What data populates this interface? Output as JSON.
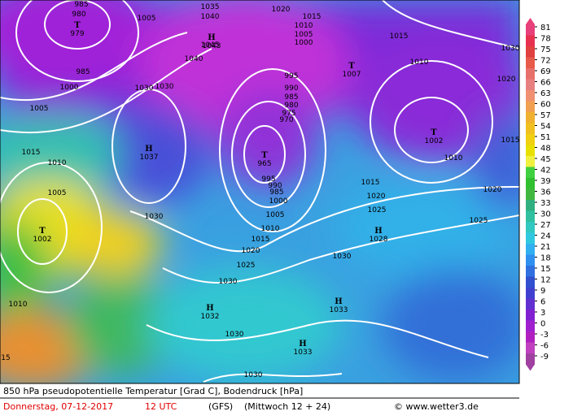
{
  "map": {
    "isobar_labels": [
      "985",
      "980",
      "1005",
      "1035",
      "1040",
      "1045",
      "1020",
      "1015",
      "1010",
      "1005",
      "1000",
      "1015",
      "1030",
      "1010",
      "1020",
      "985",
      "1000",
      "1030",
      "1030",
      "1040",
      "995",
      "990",
      "985",
      "980",
      "975",
      "970",
      "1005",
      "1015",
      "1010",
      "1010",
      "1015",
      "1005",
      "995",
      "990",
      "985",
      "1000",
      "1005",
      "1010",
      "1015",
      "1015",
      "1020",
      "1025",
      "1020",
      "1025",
      "1030",
      "1020",
      "1025",
      "1030",
      "1030",
      "1010",
      "1030",
      "1030",
      "15"
    ],
    "centers": [
      {
        "symbol": "T",
        "value": "979"
      },
      {
        "symbol": "H",
        "value": "1043"
      },
      {
        "symbol": "T",
        "value": "1007"
      },
      {
        "symbol": "T",
        "value": "1002"
      },
      {
        "symbol": "H",
        "value": "1037"
      },
      {
        "symbol": "T",
        "value": "965"
      },
      {
        "symbol": "T",
        "value": "1002"
      },
      {
        "symbol": "H",
        "value": "1028"
      },
      {
        "symbol": "H",
        "value": "1032"
      },
      {
        "symbol": "H",
        "value": "1033"
      },
      {
        "symbol": "H",
        "value": "1033"
      }
    ],
    "colorbar": {
      "ticks": [
        81,
        78,
        75,
        72,
        69,
        66,
        63,
        60,
        57,
        54,
        51,
        48,
        45,
        42,
        39,
        36,
        33,
        30,
        27,
        24,
        21,
        18,
        15,
        12,
        9,
        6,
        3,
        0,
        -3,
        -6,
        -9
      ],
      "colors": [
        "#e8407a",
        "#e83050",
        "#e04040",
        "#e85a4a",
        "#e8706a",
        "#e88080",
        "#f09070",
        "#f0a050",
        "#f0b030",
        "#f0c020",
        "#f0d010",
        "#e8e000",
        "#f0f040",
        "#40d040",
        "#30c030",
        "#40b840",
        "#30b080",
        "#30c0a0",
        "#30c8c0",
        "#30c8e0",
        "#30b0f0",
        "#3090f0",
        "#3070e0",
        "#3050d0",
        "#4040d0",
        "#6030d0",
        "#8020d0",
        "#a020d0",
        "#b020c0",
        "#c040c0",
        "#a040a0"
      ]
    },
    "footer": {
      "title": "850 hPa pseudopotentielle Temperatur [Grad C], Bodendruck [hPa]",
      "date": "Donnerstag, 07-12-2017",
      "time": "12 UTC",
      "model": "(GFS)",
      "run": "(Mittwoch 12 + 24)",
      "credit": "© www.wetter3.de"
    }
  }
}
